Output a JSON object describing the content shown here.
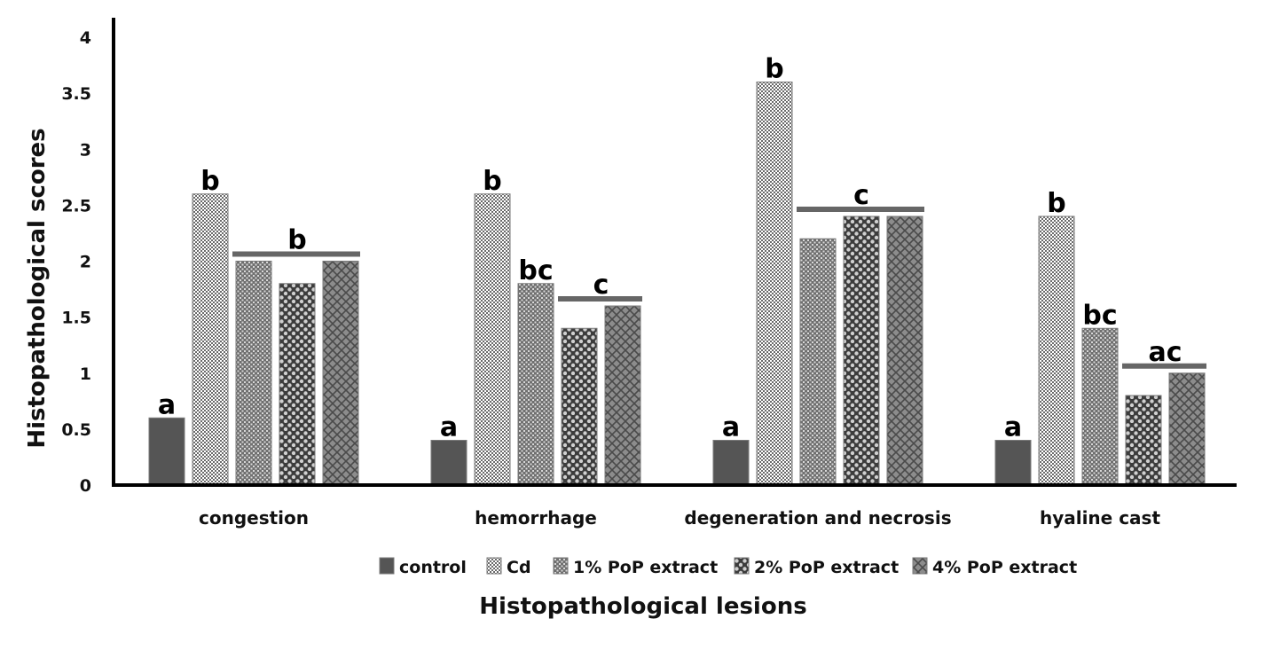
{
  "chart_data": {
    "type": "bar",
    "categories": [
      "congestion",
      "hemorrhage",
      "degeneration and necrosis",
      "hyaline cast"
    ],
    "series": [
      {
        "name": "control",
        "values": [
          0.6,
          0.4,
          0.4,
          0.4
        ]
      },
      {
        "name": "Cd",
        "values": [
          2.6,
          2.6,
          3.6,
          2.4
        ]
      },
      {
        "name": "1% PoP extract",
        "values": [
          2.0,
          1.8,
          2.2,
          1.4
        ]
      },
      {
        "name": "2% PoP extract",
        "values": [
          1.8,
          1.4,
          2.4,
          0.8
        ]
      },
      {
        "name": "4% PoP extract",
        "values": [
          2.0,
          1.6,
          2.4,
          1.0
        ]
      }
    ],
    "xlabel": "Histopathological lesions",
    "ylabel": "Histopathological scores",
    "ylim": [
      0,
      4
    ],
    "yticks": [
      "0",
      "0.5",
      "1",
      "1.5",
      "2",
      "2.5",
      "3",
      "3.5",
      "4"
    ],
    "legend_position": "bottom",
    "grid": false,
    "significance": [
      [
        {
          "label": "a",
          "series": [
            0
          ],
          "line": false
        },
        {
          "label": "b",
          "series": [
            1
          ],
          "line": false
        },
        {
          "label": "b",
          "series": [
            2,
            3,
            4
          ],
          "line": true
        }
      ],
      [
        {
          "label": "a",
          "series": [
            0
          ],
          "line": false
        },
        {
          "label": "b",
          "series": [
            1
          ],
          "line": false
        },
        {
          "label": "bc",
          "series": [
            2
          ],
          "line": false
        },
        {
          "label": "c",
          "series": [
            3,
            4
          ],
          "line": true
        }
      ],
      [
        {
          "label": "a",
          "series": [
            0
          ],
          "line": false
        },
        {
          "label": "b",
          "series": [
            1
          ],
          "line": false
        },
        {
          "label": "c",
          "series": [
            2,
            3,
            4
          ],
          "line": true
        }
      ],
      [
        {
          "label": "a",
          "series": [
            0
          ],
          "line": false
        },
        {
          "label": "b",
          "series": [
            1
          ],
          "line": false
        },
        {
          "label": "bc",
          "series": [
            2
          ],
          "line": false
        },
        {
          "label": "ac",
          "series": [
            3,
            4
          ],
          "line": true
        }
      ]
    ],
    "colors": {
      "axis": "#000000",
      "control": "#555555",
      "pattern_dark": "#555555",
      "pattern_light": "#ffffff",
      "sig_line": "#666666"
    }
  }
}
